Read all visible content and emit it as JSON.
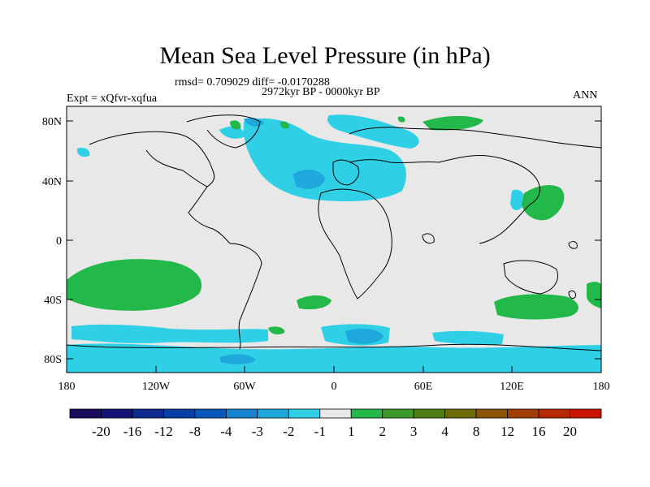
{
  "title": "Mean Sea Level Pressure (in hPa)",
  "stats": "rmsd= 0.709029 diff= -0.0170288",
  "period": "2972kyr BP - 0000kyr BP",
  "experiment": "Expt = xQfvr-xqfua",
  "season": "ANN",
  "lat_ticks": [
    "80N",
    "40N",
    "0",
    "40S",
    "80S"
  ],
  "lon_ticks": [
    "180",
    "120W",
    "60W",
    "0",
    "60E",
    "120E",
    "180"
  ],
  "colorbar": {
    "labels": [
      "-20",
      "-16",
      "-12",
      "-8",
      "-4",
      "-3",
      "-2",
      "-1",
      "1",
      "2",
      "3",
      "4",
      "8",
      "12",
      "16",
      "20"
    ],
    "colors": [
      "#1a0a5c",
      "#14137a",
      "#0f2a8f",
      "#0a3ea6",
      "#0b58bd",
      "#1581cf",
      "#1ea8dc",
      "#2fd0e6",
      "#e8e8e8",
      "#22b84a",
      "#3d9a2a",
      "#4e7f14",
      "#6d6c08",
      "#8a5506",
      "#a03d05",
      "#b52a05",
      "#cc1405"
    ]
  },
  "background_color": "#e8e8e8"
}
